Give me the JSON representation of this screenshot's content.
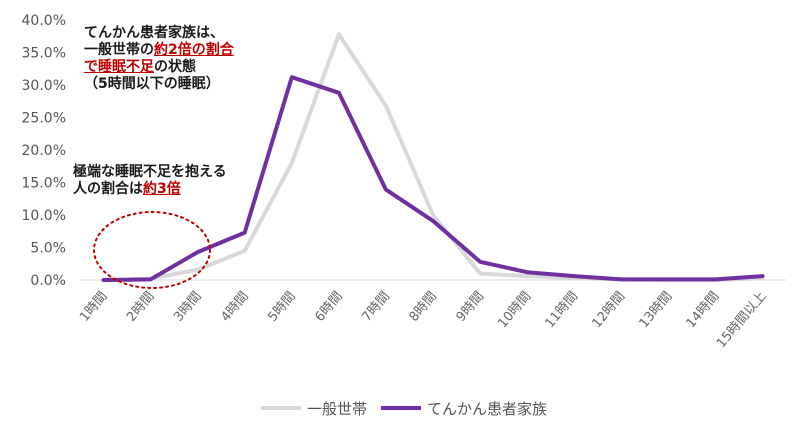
{
  "chart_data": {
    "type": "line",
    "categories": [
      "1時間",
      "2時間",
      "3時間",
      "4時間",
      "5時間",
      "6時間",
      "7時間",
      "8時間",
      "9時間",
      "10時間",
      "11時間",
      "12時間",
      "13時間",
      "14時間",
      "15時間以上"
    ],
    "ylim": [
      0,
      40
    ],
    "y_ticks": [
      "0.0%",
      "5.0%",
      "10.0%",
      "15.0%",
      "20.0%",
      "25.0%",
      "30.0%",
      "35.0%",
      "40.0%"
    ],
    "grid": false,
    "legend_position": "bottom",
    "series": [
      {
        "name": "一般世帯",
        "color": "#d9d9d9",
        "values": [
          0.0,
          0.2,
          1.6,
          4.5,
          18.0,
          37.8,
          26.8,
          10.0,
          1.0,
          0.6,
          0.3,
          0.1,
          0.0,
          0.0,
          0.3
        ]
      },
      {
        "name": "てんかん患者家族",
        "color": "#7030a0",
        "values": [
          0.0,
          0.1,
          4.3,
          7.3,
          31.2,
          28.8,
          13.9,
          9.1,
          2.8,
          1.2,
          0.6,
          0.1,
          0.1,
          0.1,
          0.6
        ]
      }
    ]
  },
  "annotations": {
    "top": {
      "line1": "てんかん患者家族は、",
      "line2_a": "一般世帯の",
      "line2_b": "約2倍の割合",
      "line3_a": "で睡眠不足",
      "line3_b": "の状態",
      "line4": "（5時間以下の睡眠）"
    },
    "mid": {
      "line1": "極端な睡眠不足を抱える",
      "line2_a": "人の割合は",
      "line2_b": "約3倍"
    }
  }
}
